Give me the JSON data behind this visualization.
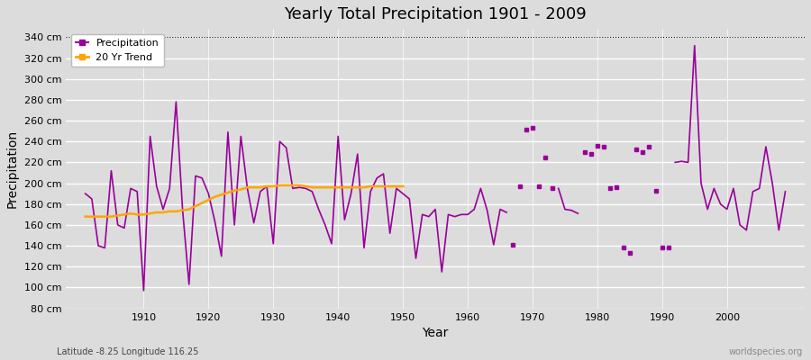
{
  "title": "Yearly Total Precipitation 1901 - 2009",
  "xlabel": "Year",
  "ylabel": "Precipitation",
  "subtitle_lat_lon": "Latitude -8.25 Longitude 116.25",
  "watermark": "worldspecies.org",
  "ylim": [
    80,
    345
  ],
  "ytick_values": [
    80,
    100,
    120,
    140,
    160,
    180,
    200,
    220,
    240,
    260,
    280,
    300,
    320,
    340
  ],
  "ytick_labels": [
    "80 cm",
    "100 cm",
    "120 cm",
    "140 cm",
    "160 cm",
    "180 cm",
    "200 cm",
    "220 cm",
    "240 cm",
    "260 cm",
    "280 cm",
    "300 cm",
    "320 cm",
    "340 cm"
  ],
  "precip_color": "#990099",
  "trend_color": "#FFA500",
  "bg_color": "#DCDCDC",
  "plot_bg_color": "#DCDCDC",
  "grid_color": "#FFFFFF",
  "dashed_line_y": 340,
  "segments": [
    {
      "years": [
        1901,
        1902,
        1903,
        1904,
        1905,
        1906,
        1907,
        1908,
        1909,
        1910,
        1911,
        1912,
        1913,
        1914,
        1915,
        1916,
        1917,
        1918,
        1919,
        1920,
        1921,
        1922,
        1923,
        1924,
        1925,
        1926,
        1927,
        1928,
        1929,
        1930,
        1931,
        1932,
        1933,
        1934,
        1935,
        1936,
        1937,
        1938,
        1939,
        1940,
        1941,
        1942,
        1943,
        1944,
        1945,
        1946,
        1947,
        1948,
        1949,
        1950,
        1951,
        1952,
        1953,
        1954,
        1955,
        1956,
        1957,
        1958,
        1959,
        1960,
        1961,
        1962,
        1963,
        1964,
        1965,
        1966
      ],
      "values": [
        190,
        185,
        140,
        138,
        212,
        160,
        157,
        195,
        192,
        97,
        245,
        197,
        175,
        195,
        278,
        175,
        103,
        207,
        205,
        190,
        163,
        130,
        249,
        160,
        245,
        195,
        162,
        192,
        197,
        142,
        240,
        234,
        195,
        196,
        195,
        192,
        175,
        160,
        142,
        245,
        165,
        190,
        228,
        138,
        192,
        205,
        209,
        152,
        195,
        190,
        185,
        128,
        170,
        168,
        175,
        115,
        170,
        168,
        170,
        170,
        175,
        195,
        174,
        141,
        175,
        172
      ]
    },
    {
      "years": [
        1974,
        1975,
        1976,
        1977
      ],
      "values": [
        195,
        175,
        174,
        171
      ]
    },
    {
      "years": [
        1992,
        1993,
        1994,
        1995,
        1996,
        1997,
        1998,
        1999,
        2000,
        2001,
        2002,
        2003,
        2004,
        2005,
        2006,
        2007,
        2008,
        2009
      ],
      "values": [
        220,
        221,
        220,
        332,
        200,
        175,
        195,
        180,
        175,
        195,
        160,
        155,
        192,
        195,
        235,
        200,
        155,
        192
      ]
    }
  ],
  "isolated_points": [
    {
      "year": 1967,
      "value": 141
    },
    {
      "year": 1968,
      "value": 197
    },
    {
      "year": 1969,
      "value": 251
    },
    {
      "year": 1970,
      "value": 253
    },
    {
      "year": 1971,
      "value": 197
    },
    {
      "year": 1972,
      "value": 225
    },
    {
      "year": 1973,
      "value": 195
    },
    {
      "year": 1978,
      "value": 230
    },
    {
      "year": 1979,
      "value": 228
    },
    {
      "year": 1980,
      "value": 236
    },
    {
      "year": 1981,
      "value": 235
    },
    {
      "year": 1982,
      "value": 195
    },
    {
      "year": 1983,
      "value": 196
    },
    {
      "year": 1984,
      "value": 138
    },
    {
      "year": 1985,
      "value": 133
    },
    {
      "year": 1986,
      "value": 232
    },
    {
      "year": 1987,
      "value": 230
    },
    {
      "year": 1988,
      "value": 235
    },
    {
      "year": 1989,
      "value": 193
    },
    {
      "year": 1990,
      "value": 138
    },
    {
      "year": 1991,
      "value": 138
    }
  ],
  "trend_years": [
    1901,
    1902,
    1903,
    1904,
    1905,
    1906,
    1907,
    1908,
    1909,
    1910,
    1911,
    1912,
    1913,
    1914,
    1915,
    1916,
    1917,
    1918,
    1919,
    1920,
    1921,
    1922,
    1923,
    1924,
    1925,
    1926,
    1927,
    1928,
    1929,
    1930,
    1931,
    1932,
    1933,
    1934,
    1935,
    1936,
    1937,
    1938,
    1939,
    1940,
    1941,
    1942,
    1943,
    1944,
    1945,
    1946,
    1947,
    1948,
    1949,
    1950
  ],
  "trend_values": [
    168,
    168,
    168,
    168,
    168,
    169,
    170,
    171,
    170,
    170,
    171,
    172,
    172,
    173,
    173,
    174,
    175,
    178,
    181,
    184,
    187,
    189,
    191,
    193,
    194,
    196,
    196,
    196,
    197,
    197,
    198,
    198,
    198,
    198,
    197,
    196,
    196,
    196,
    196,
    196,
    196,
    196,
    196,
    196,
    197,
    197,
    197,
    197,
    197,
    197
  ],
  "xlim": [
    1898,
    2012
  ],
  "xticks": [
    1910,
    1920,
    1930,
    1940,
    1950,
    1960,
    1970,
    1980,
    1990,
    2000
  ]
}
